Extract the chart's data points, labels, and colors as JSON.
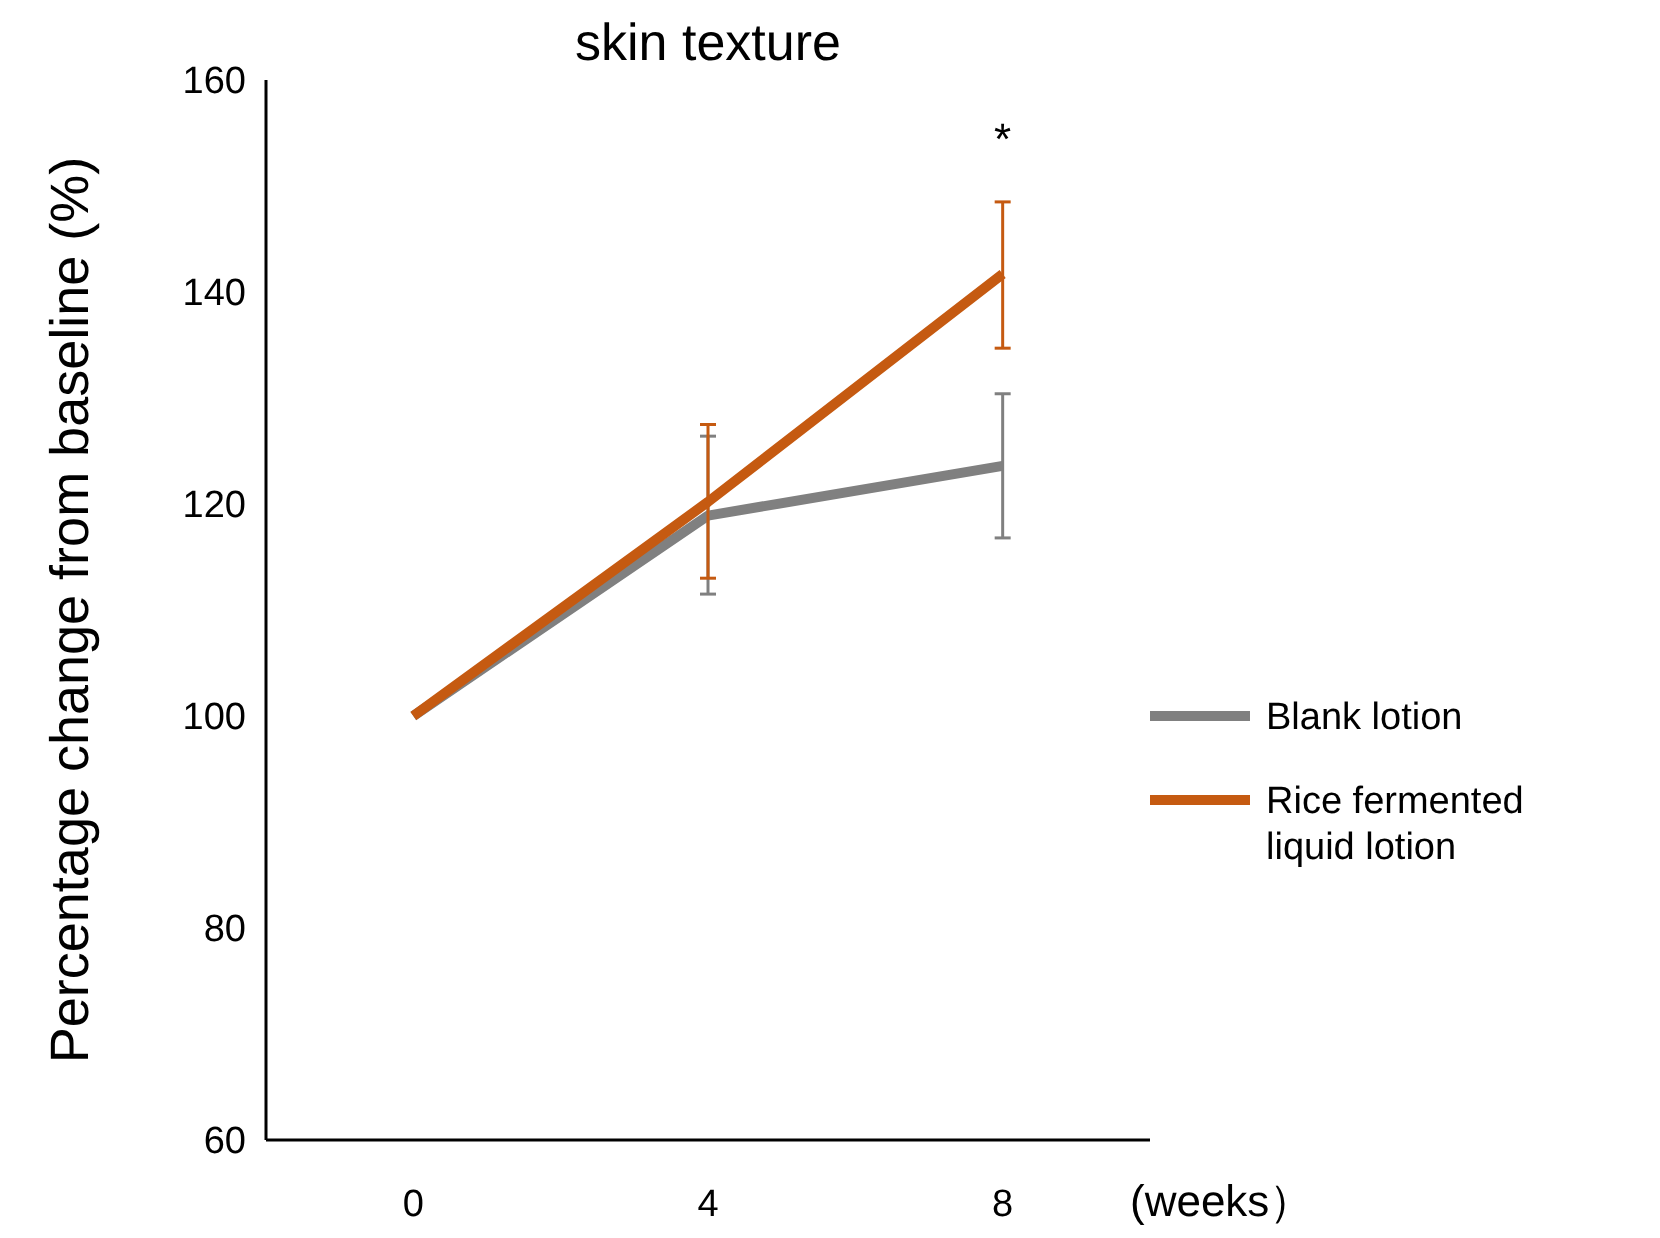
{
  "chart_data": {
    "type": "line",
    "title": "skin texture",
    "xlabel": "(weeks）",
    "ylabel": "Percentage change from baseline (%)",
    "categories": [
      "0",
      "4",
      "8"
    ],
    "series": [
      {
        "name": "Blank lotion",
        "color": "#808080",
        "values": [
          100,
          118.9,
          123.6
        ],
        "errors": [
          null,
          [
            111.5,
            126.4
          ],
          [
            116.8,
            130.4
          ]
        ]
      },
      {
        "name": "Rice fermented liquid lotion",
        "color": "#c55a11",
        "values": [
          100,
          120.2,
          141.7
        ],
        "errors": [
          null,
          [
            113,
            127.5
          ],
          [
            134.7,
            148.5
          ]
        ]
      }
    ],
    "ylim": [
      60,
      160
    ],
    "yticks": [
      60,
      80,
      100,
      120,
      140,
      160
    ],
    "grid": false,
    "legend": "right",
    "marker": "none",
    "line_style": "solid",
    "annotations": [
      "*"
    ]
  }
}
